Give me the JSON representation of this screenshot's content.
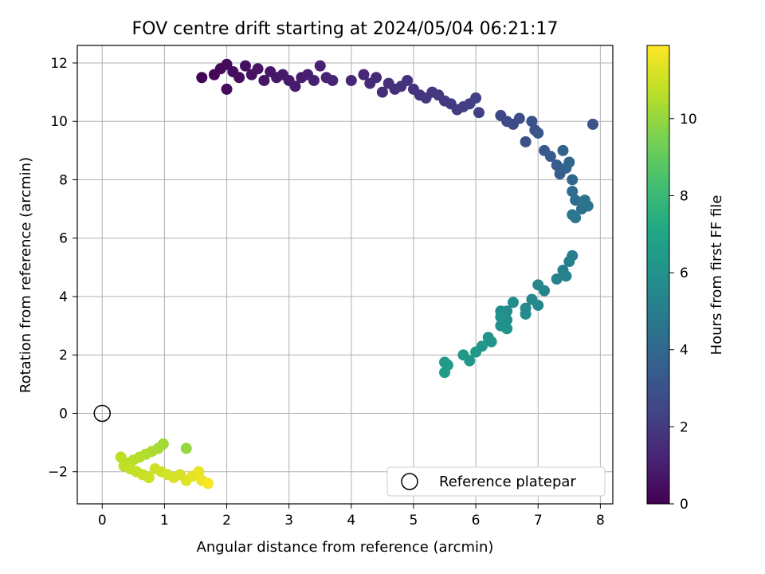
{
  "chart_data": {
    "type": "scatter",
    "title": "FOV centre drift starting at 2024/05/04 06:21:17",
    "xlabel": "Angular distance from reference (arcmin)",
    "ylabel": "Rotation from reference (arcmin)",
    "xlim": [
      -0.4,
      8.2
    ],
    "ylim": [
      -3.1,
      12.6
    ],
    "xticks": [
      0,
      1,
      2,
      3,
      4,
      5,
      6,
      7,
      8
    ],
    "yticks": [
      -2,
      0,
      2,
      4,
      6,
      8,
      10,
      12
    ],
    "grid": true,
    "legend": {
      "placement": "lower right",
      "entries": [
        "Reference platepar"
      ]
    },
    "colorbar": {
      "label": "Hours from first FF file",
      "range": [
        0,
        11.9
      ],
      "ticks": [
        0,
        2,
        4,
        6,
        8,
        10
      ],
      "colormap": "viridis"
    },
    "reference_point": {
      "x": 0,
      "y": 0,
      "marker": "open-circle",
      "label": "Reference platepar"
    },
    "points": [
      [
        1.6,
        11.5,
        0.1
      ],
      [
        1.8,
        11.6,
        0.2
      ],
      [
        1.9,
        11.8,
        0.25
      ],
      [
        2.0,
        11.95,
        0.3
      ],
      [
        2.0,
        11.1,
        0.35
      ],
      [
        2.1,
        11.7,
        0.4
      ],
      [
        2.2,
        11.5,
        0.45
      ],
      [
        2.3,
        11.9,
        0.5
      ],
      [
        2.4,
        11.6,
        0.55
      ],
      [
        2.5,
        11.8,
        0.6
      ],
      [
        2.6,
        11.4,
        0.65
      ],
      [
        2.7,
        11.7,
        0.7
      ],
      [
        2.8,
        11.5,
        0.75
      ],
      [
        2.9,
        11.6,
        0.8
      ],
      [
        3.0,
        11.4,
        0.85
      ],
      [
        3.1,
        11.2,
        0.9
      ],
      [
        3.2,
        11.5,
        0.95
      ],
      [
        3.3,
        11.6,
        1.0
      ],
      [
        3.4,
        11.4,
        1.05
      ],
      [
        3.5,
        11.9,
        1.1
      ],
      [
        3.6,
        11.5,
        1.15
      ],
      [
        3.7,
        11.4,
        1.2
      ],
      [
        4.0,
        11.4,
        1.3
      ],
      [
        4.2,
        11.6,
        1.35
      ],
      [
        4.3,
        11.3,
        1.4
      ],
      [
        4.4,
        11.5,
        1.45
      ],
      [
        4.5,
        11.0,
        1.5
      ],
      [
        4.6,
        11.3,
        1.55
      ],
      [
        4.7,
        11.1,
        1.6
      ],
      [
        4.8,
        11.2,
        1.65
      ],
      [
        4.9,
        11.4,
        1.7
      ],
      [
        5.0,
        11.1,
        1.75
      ],
      [
        5.1,
        10.9,
        1.8
      ],
      [
        5.2,
        10.8,
        1.85
      ],
      [
        5.3,
        11.0,
        1.9
      ],
      [
        5.4,
        10.9,
        1.95
      ],
      [
        5.5,
        10.7,
        2.0
      ],
      [
        5.6,
        10.6,
        2.05
      ],
      [
        5.7,
        10.4,
        2.1
      ],
      [
        5.8,
        10.5,
        2.15
      ],
      [
        5.9,
        10.6,
        2.2
      ],
      [
        6.0,
        10.8,
        2.25
      ],
      [
        6.05,
        10.3,
        2.3
      ],
      [
        6.4,
        10.2,
        2.5
      ],
      [
        6.5,
        10.0,
        2.6
      ],
      [
        6.6,
        9.9,
        2.7
      ],
      [
        6.7,
        10.1,
        2.8
      ],
      [
        6.8,
        9.3,
        2.9
      ],
      [
        6.9,
        10.0,
        3.0
      ],
      [
        6.95,
        9.7,
        3.1
      ],
      [
        7.0,
        9.6,
        3.2
      ],
      [
        7.1,
        9.0,
        3.3
      ],
      [
        7.2,
        8.8,
        3.4
      ],
      [
        7.3,
        8.5,
        3.5
      ],
      [
        7.35,
        8.2,
        3.6
      ],
      [
        7.4,
        9.0,
        3.7
      ],
      [
        7.45,
        8.4,
        3.8
      ],
      [
        7.5,
        8.6,
        3.9
      ],
      [
        7.55,
        8.0,
        4.0
      ],
      [
        7.88,
        9.9,
        3.1
      ],
      [
        7.55,
        7.6,
        4.2
      ],
      [
        7.6,
        7.3,
        4.3
      ],
      [
        7.7,
        7.0,
        4.4
      ],
      [
        7.75,
        7.3,
        4.5
      ],
      [
        7.8,
        7.1,
        4.55
      ],
      [
        7.55,
        6.8,
        4.65
      ],
      [
        7.6,
        6.7,
        4.7
      ],
      [
        7.55,
        5.4,
        5.0
      ],
      [
        7.5,
        5.2,
        5.1
      ],
      [
        7.4,
        4.9,
        5.2
      ],
      [
        7.45,
        4.7,
        5.25
      ],
      [
        7.3,
        4.6,
        5.3
      ],
      [
        7.1,
        4.2,
        5.4
      ],
      [
        7.0,
        4.4,
        5.45
      ],
      [
        6.9,
        3.9,
        5.5
      ],
      [
        7.0,
        3.7,
        5.55
      ],
      [
        6.8,
        3.6,
        5.6
      ],
      [
        6.8,
        3.4,
        5.65
      ],
      [
        6.6,
        3.8,
        5.7
      ],
      [
        6.5,
        3.5,
        5.75
      ],
      [
        6.4,
        3.5,
        5.8
      ],
      [
        6.5,
        3.2,
        5.85
      ],
      [
        6.4,
        3.0,
        5.9
      ],
      [
        6.5,
        2.9,
        5.95
      ],
      [
        6.4,
        3.3,
        6.0
      ],
      [
        6.2,
        2.6,
        6.1
      ],
      [
        6.25,
        2.45,
        6.15
      ],
      [
        6.1,
        2.3,
        6.2
      ],
      [
        6.0,
        2.1,
        6.25
      ],
      [
        5.9,
        1.8,
        6.3
      ],
      [
        5.8,
        2.0,
        6.35
      ],
      [
        5.5,
        1.75,
        6.4
      ],
      [
        5.55,
        1.65,
        6.45
      ],
      [
        5.5,
        1.4,
        6.5
      ],
      [
        1.35,
        -1.2,
        10.0
      ],
      [
        0.98,
        -1.05,
        10.2
      ],
      [
        0.9,
        -1.2,
        10.3
      ],
      [
        0.8,
        -1.3,
        10.4
      ],
      [
        0.7,
        -1.4,
        10.5
      ],
      [
        0.6,
        -1.5,
        10.55
      ],
      [
        0.5,
        -1.6,
        10.6
      ],
      [
        0.4,
        -1.7,
        10.65
      ],
      [
        0.3,
        -1.5,
        10.7
      ],
      [
        0.35,
        -1.8,
        10.75
      ],
      [
        0.45,
        -1.9,
        10.8
      ],
      [
        0.55,
        -2.0,
        10.85
      ],
      [
        0.65,
        -2.1,
        10.9
      ],
      [
        0.75,
        -2.2,
        10.95
      ],
      [
        0.85,
        -1.9,
        11.0
      ],
      [
        0.95,
        -2.0,
        11.05
      ],
      [
        1.05,
        -2.1,
        11.1
      ],
      [
        1.15,
        -2.2,
        11.15
      ],
      [
        1.25,
        -2.1,
        11.2
      ],
      [
        1.35,
        -2.3,
        11.3
      ],
      [
        1.45,
        -2.15,
        11.4
      ],
      [
        1.55,
        -2.0,
        11.5
      ],
      [
        1.6,
        -2.3,
        11.6
      ],
      [
        1.7,
        -2.4,
        11.8
      ]
    ]
  }
}
